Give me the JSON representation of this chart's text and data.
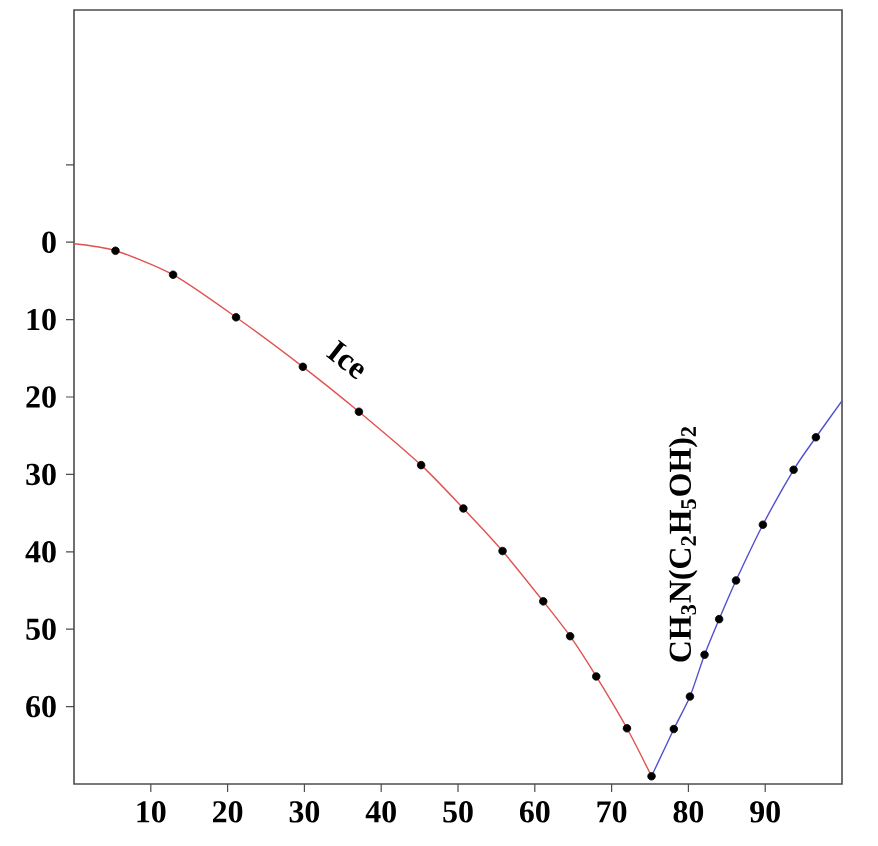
{
  "chart_data": {
    "type": "line",
    "xlim": [
      0,
      100
    ],
    "ylim": [
      70,
      -30
    ],
    "xticks": [
      10,
      20,
      30,
      40,
      50,
      60,
      70,
      80,
      90
    ],
    "yticks": [
      {
        "value": -10,
        "label": null
      },
      0,
      10,
      20,
      30,
      40,
      50,
      60
    ],
    "series": [
      {
        "name": "Ice",
        "color": "#e0524f",
        "x": [
          0,
          5.4,
          12.9,
          21.1,
          29.8,
          37.1,
          45.2,
          50.7,
          55.8,
          61.1,
          64.6,
          68.0,
          72.0,
          75.2
        ],
        "values": [
          0.2,
          1.1,
          4.2,
          9.7,
          16.1,
          21.9,
          28.8,
          34.4,
          39.9,
          46.4,
          50.9,
          56.1,
          62.8,
          69.0
        ]
      },
      {
        "name": "CH$_{3}$N(C$_{2}$H$_{5}$OH)$_{2}$",
        "color": "#5050d0",
        "x": [
          75.2,
          78.1,
          80.2,
          82.1,
          84.0,
          86.2,
          89.7,
          93.7,
          96.6,
          100
        ],
        "values": [
          69.0,
          62.9,
          58.7,
          53.3,
          48.7,
          43.7,
          36.5,
          29.4,
          25.2,
          20.5
        ]
      },
      {
        "type": "scatter",
        "color": "#000000",
        "marker": "circle",
        "x": [
          5.4,
          12.9,
          21.1,
          29.8,
          37.1,
          45.2,
          50.7,
          55.8,
          61.1,
          64.6,
          68.0,
          72.0,
          75.2,
          78.1,
          80.2,
          82.1,
          84.0,
          86.2,
          89.7,
          93.7,
          96.6
        ],
        "values": [
          1.1,
          4.2,
          9.7,
          16.1,
          21.9,
          28.8,
          34.4,
          39.9,
          46.4,
          50.9,
          56.1,
          62.8,
          69.0,
          62.9,
          58.7,
          53.3,
          48.7,
          43.7,
          36.5,
          29.4,
          25.2
        ]
      }
    ]
  }
}
